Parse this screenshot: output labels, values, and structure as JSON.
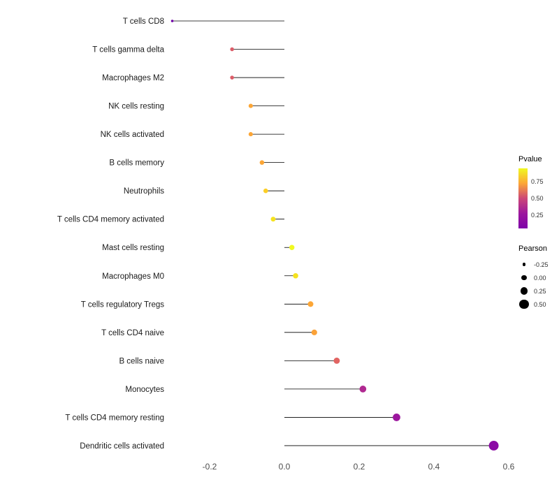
{
  "chart_data": {
    "type": "scatter",
    "variant": "lollipop",
    "title": "",
    "xlabel": "",
    "ylabel": "",
    "grid": false,
    "xlim": [
      -0.33,
      0.63
    ],
    "x_ticks": {
      "values": [
        -0.2,
        0.0,
        0.2,
        0.4,
        0.6
      ],
      "labels": [
        "-0.2",
        "0.0",
        "0.2",
        "0.4",
        "0.6"
      ]
    },
    "baseline": 0.0,
    "series": [
      {
        "label": "T cells CD8",
        "pearson": -0.3,
        "color": "#6E00A8"
      },
      {
        "label": "T cells gamma delta",
        "pearson": -0.14,
        "color": "#DB5C68"
      },
      {
        "label": "Macrophages M2",
        "pearson": -0.14,
        "color": "#DB5C68"
      },
      {
        "label": "NK cells resting",
        "pearson": -0.09,
        "color": "#FCA636"
      },
      {
        "label": "NK cells activated",
        "pearson": -0.09,
        "color": "#FCA636"
      },
      {
        "label": "B cells memory",
        "pearson": -0.06,
        "color": "#FCA636"
      },
      {
        "label": "Neutrophils",
        "pearson": -0.05,
        "color": "#FCCE25"
      },
      {
        "label": "T cells CD4 memory activated",
        "pearson": -0.03,
        "color": "#F5E21F"
      },
      {
        "label": "Mast cells resting",
        "pearson": 0.02,
        "color": "#F0F921"
      },
      {
        "label": "Macrophages M0",
        "pearson": 0.03,
        "color": "#F5E21F"
      },
      {
        "label": "T cells regulatory  Tregs",
        "pearson": 0.07,
        "color": "#FCA636"
      },
      {
        "label": "T cells CD4 naive",
        "pearson": 0.08,
        "color": "#FBA238"
      },
      {
        "label": "B cells naive",
        "pearson": 0.14,
        "color": "#E16462"
      },
      {
        "label": "Monocytes",
        "pearson": 0.21,
        "color": "#B02991"
      },
      {
        "label": "T cells CD4 memory resting",
        "pearson": 0.3,
        "color": "#9C179E"
      },
      {
        "label": "Dendritic cells activated",
        "pearson": 0.56,
        "color": "#8B0AA5"
      }
    ],
    "legends": {
      "color": {
        "title": "Pvalue",
        "tick_labels": [
          "0.75",
          "0.50",
          "0.25"
        ],
        "gradient_colors": [
          "#F0F921",
          "#FCA636",
          "#CC4778",
          "#9C179E",
          "#7E03A8"
        ]
      },
      "size": {
        "title": "Pearson",
        "tick_labels": [
          "-0.25",
          "0.00",
          "0.25",
          "0.50"
        ],
        "tick_values": [
          -0.25,
          0.0,
          0.25,
          0.5
        ]
      }
    }
  }
}
